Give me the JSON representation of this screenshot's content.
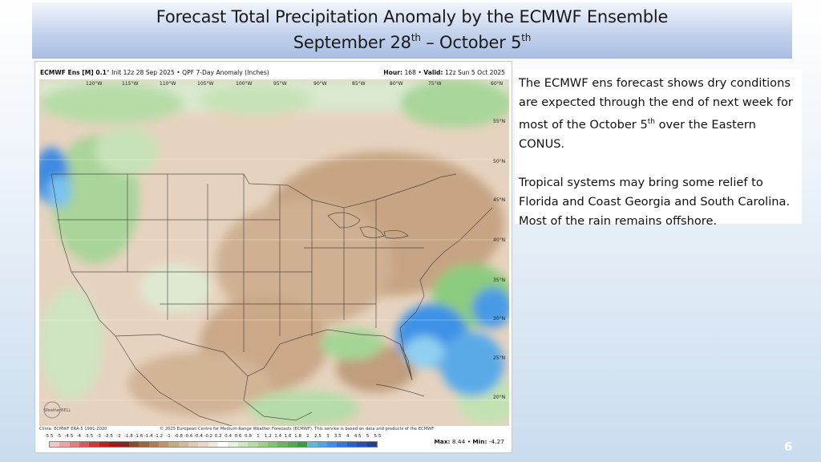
{
  "slide": {
    "title_line1": "Forecast Total Precipitation Anomaly by the ECMWF Ensemble",
    "title_line2_a": "September 28",
    "title_line2_sup_a": "th",
    "title_line2_b": " – October 5",
    "title_line2_sup_b": "th",
    "slide_number": "6"
  },
  "map": {
    "header_model": "ECMWF Ens [M] 0.1",
    "header_rest": "° Init 12z 28 Sep 2025  •  QPF 7-Day Anomaly (Inches)",
    "header_hour_label": "Hour:",
    "header_hour": "168",
    "header_valid_label": "Valid:",
    "header_valid": "12z Sun 5 Oct 2025",
    "lon_labels": [
      "120°W",
      "115°W",
      "110°W",
      "105°W",
      "100°W",
      "95°W",
      "90°W",
      "85°W",
      "80°W",
      "75°W",
      "60°N"
    ],
    "lat_labels": [
      "55°N",
      "50°N",
      "45°N",
      "40°N",
      "35°N",
      "30°N",
      "25°N",
      "20°N"
    ],
    "watermark": "WeatherBELL",
    "footer_clim": "Clima: ECMWF ERA-5 1991-2020",
    "footer_copy": "© 2025 European Centre for Medium-Range Weather Forecasts (ECMWF). This service is based on data and products of the ECMWF",
    "colorbar_labels": [
      "-5.5",
      "-5",
      "-4.5",
      "-4",
      "-3.5",
      "-3",
      "-2.5",
      "-2",
      "-1.8",
      "-1.6",
      "-1.4",
      "-1.2",
      "-1",
      "-0.8",
      "-0.6",
      "-0.4",
      "-0.2",
      "0.2",
      "0.4",
      "0.6",
      "0.8",
      "1",
      "1.2",
      "1.4",
      "1.6",
      "1.8",
      "2",
      "2.5",
      "3",
      "3.5",
      "4",
      "4.5",
      "5",
      "5.5"
    ],
    "colorbar_colors": [
      "#f6c6c6",
      "#eea3a3",
      "#e37f7f",
      "#d65a5a",
      "#c73b3b",
      "#b42222",
      "#9e1b1b",
      "#7e2a1c",
      "#8a4a2e",
      "#9c6440",
      "#ae7c55",
      "#bf946c",
      "#cba783",
      "#d6b99a",
      "#e0cab0",
      "#e9d9c6",
      "#f2e8dc",
      "#ffffff",
      "#e7f3e1",
      "#cfe8c4",
      "#b6dca7",
      "#9dd08a",
      "#82c46e",
      "#6ab85b",
      "#52ab4a",
      "#3f9c3c",
      "#64b7d8",
      "#4fa6e0",
      "#3e90e3",
      "#2f78dc",
      "#2962c8",
      "#2750b0",
      "#243e95"
    ],
    "max_label": "Max:",
    "max_value": "8.44",
    "min_label": "Min:",
    "min_value": "-4.27"
  },
  "text": {
    "p1_a": "The ECMWF ens forecast shows dry conditions are expected through the end of next week for most of the October 5",
    "p1_sup": "th",
    "p1_b": " over the  Eastern CONUS.",
    "p2": "Tropical systems may bring some relief to Florida and Coast Georgia and South Carolina. Most of the rain remains offshore."
  },
  "colors": {
    "dry_brown": "#c9a98a",
    "light_brown": "#dcc4ab",
    "green": "#9dd38d",
    "blue": "#3b8fe6",
    "light_blue": "#7ec8ee"
  }
}
